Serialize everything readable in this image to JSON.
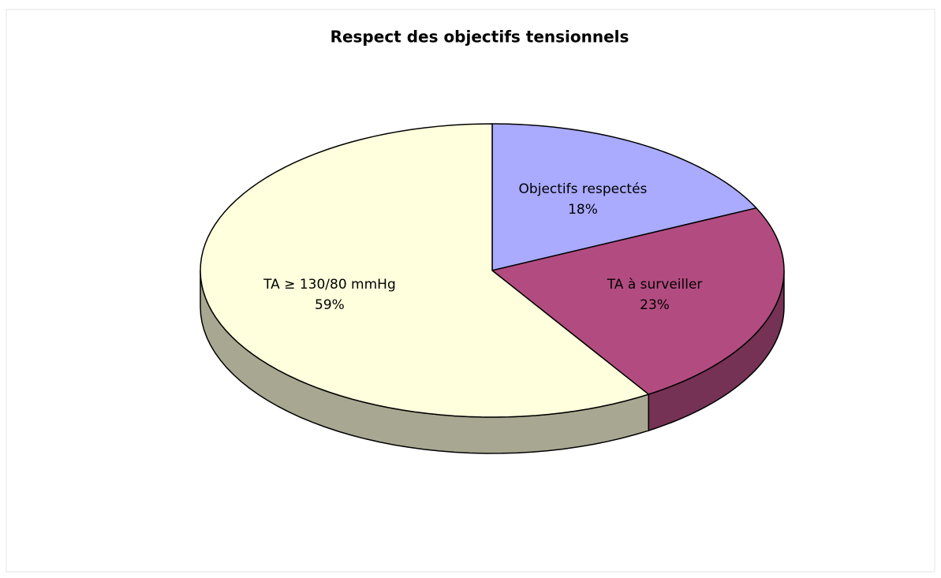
{
  "chart_data": {
    "type": "pie",
    "title": "Respect des objectifs tensionnels",
    "categories": [
      "Objectifs respectés",
      "TA à surveiller",
      "TA ≥ 130/80 mmHg"
    ],
    "values": [
      18,
      23,
      59
    ],
    "value_labels": [
      "18%",
      "23%",
      "59%"
    ],
    "colors": [
      "#aaaaff",
      "#b24c80",
      "#ffffdd"
    ]
  }
}
